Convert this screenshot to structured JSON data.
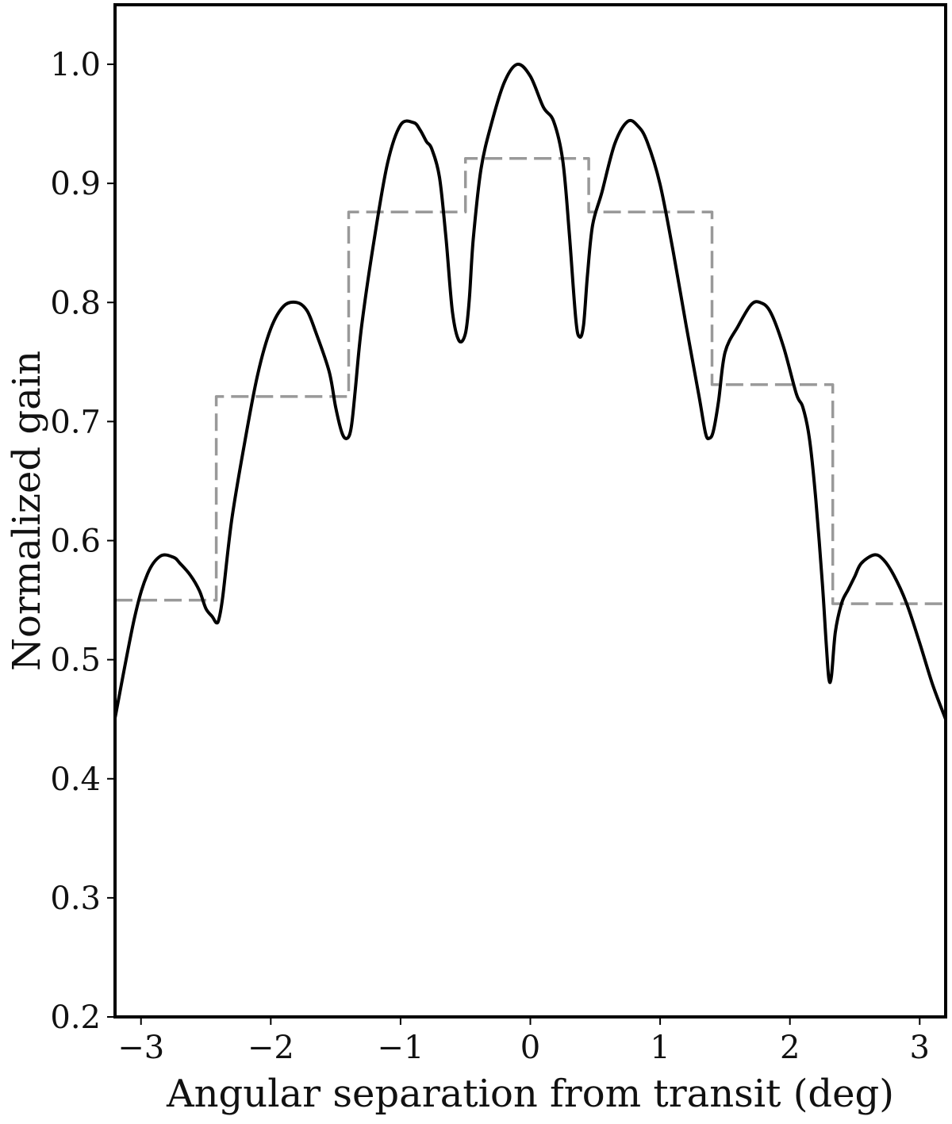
{
  "chart_data": {
    "type": "line",
    "xlabel": "Angular separation from transit (deg)",
    "ylabel": "Normalized gain",
    "xlim": [
      -3.2,
      3.2
    ],
    "ylim": [
      0.2,
      1.05
    ],
    "grid": false,
    "legend": "none",
    "xticks": [
      {
        "value": -3,
        "label": "−3"
      },
      {
        "value": -2,
        "label": "−2"
      },
      {
        "value": -1,
        "label": "−1"
      },
      {
        "value": 0,
        "label": "0"
      },
      {
        "value": 1,
        "label": "1"
      },
      {
        "value": 2,
        "label": "2"
      },
      {
        "value": 3,
        "label": "3"
      }
    ],
    "yticks": [
      {
        "value": 0.2,
        "label": "0.2"
      },
      {
        "value": 0.3,
        "label": "0.3"
      },
      {
        "value": 0.4,
        "label": "0.4"
      },
      {
        "value": 0.5,
        "label": "0.5"
      },
      {
        "value": 0.6,
        "label": "0.6"
      },
      {
        "value": 0.7,
        "label": "0.7"
      },
      {
        "value": 0.8,
        "label": "0.8"
      },
      {
        "value": 0.9,
        "label": "0.9"
      },
      {
        "value": 1.0,
        "label": "1.0"
      }
    ],
    "series": [
      {
        "style": "solid",
        "color": "#000000",
        "x": [
          -3.2,
          -3.05,
          -2.95,
          -2.85,
          -2.75,
          -2.7,
          -2.62,
          -2.55,
          -2.5,
          -2.45,
          -2.42,
          -2.4,
          -2.37,
          -2.3,
          -2.2,
          -2.1,
          -2.0,
          -1.9,
          -1.8,
          -1.72,
          -1.65,
          -1.55,
          -1.5,
          -1.45,
          -1.41,
          -1.38,
          -1.35,
          -1.3,
          -1.2,
          -1.1,
          -1.0,
          -0.9,
          -0.85,
          -0.8,
          -0.76,
          -0.7,
          -0.65,
          -0.6,
          -0.55,
          -0.5,
          -0.47,
          -0.44,
          -0.38,
          -0.3,
          -0.2,
          -0.1,
          0.0,
          0.1,
          0.18,
          0.25,
          0.3,
          0.35,
          0.38,
          0.41,
          0.44,
          0.48,
          0.55,
          0.65,
          0.75,
          0.83,
          0.9,
          1.0,
          1.1,
          1.2,
          1.3,
          1.35,
          1.38,
          1.41,
          1.45,
          1.5,
          1.6,
          1.7,
          1.77,
          1.85,
          1.95,
          2.05,
          2.1,
          2.15,
          2.2,
          2.25,
          2.28,
          2.3,
          2.32,
          2.35,
          2.4,
          2.45,
          2.5,
          2.55,
          2.65,
          2.72,
          2.8,
          2.9,
          3.0,
          3.1,
          3.2
        ],
        "y": [
          0.451,
          0.535,
          0.572,
          0.587,
          0.586,
          0.581,
          0.571,
          0.558,
          0.543,
          0.536,
          0.531,
          0.534,
          0.553,
          0.618,
          0.683,
          0.74,
          0.778,
          0.797,
          0.8,
          0.793,
          0.774,
          0.742,
          0.712,
          0.69,
          0.686,
          0.695,
          0.725,
          0.78,
          0.855,
          0.917,
          0.949,
          0.951,
          0.945,
          0.935,
          0.929,
          0.905,
          0.854,
          0.792,
          0.768,
          0.774,
          0.803,
          0.853,
          0.912,
          0.95,
          0.985,
          1.0,
          0.99,
          0.964,
          0.952,
          0.919,
          0.858,
          0.786,
          0.771,
          0.781,
          0.823,
          0.865,
          0.892,
          0.933,
          0.952,
          0.948,
          0.935,
          0.899,
          0.843,
          0.781,
          0.721,
          0.69,
          0.686,
          0.692,
          0.717,
          0.758,
          0.78,
          0.798,
          0.8,
          0.792,
          0.763,
          0.723,
          0.712,
          0.686,
          0.634,
          0.564,
          0.513,
          0.484,
          0.486,
          0.523,
          0.548,
          0.559,
          0.57,
          0.581,
          0.588,
          0.584,
          0.571,
          0.547,
          0.514,
          0.479,
          0.45
        ]
      },
      {
        "style": "dashed",
        "color": "#999999",
        "x": [
          -3.2,
          -2.42,
          -2.42,
          -1.4,
          -1.4,
          -0.5,
          -0.5,
          0.45,
          0.45,
          1.4,
          1.4,
          2.33,
          2.33,
          3.2
        ],
        "y": [
          0.55,
          0.55,
          0.721,
          0.721,
          0.876,
          0.876,
          0.921,
          0.921,
          0.876,
          0.876,
          0.731,
          0.731,
          0.547,
          0.547
        ]
      }
    ]
  }
}
